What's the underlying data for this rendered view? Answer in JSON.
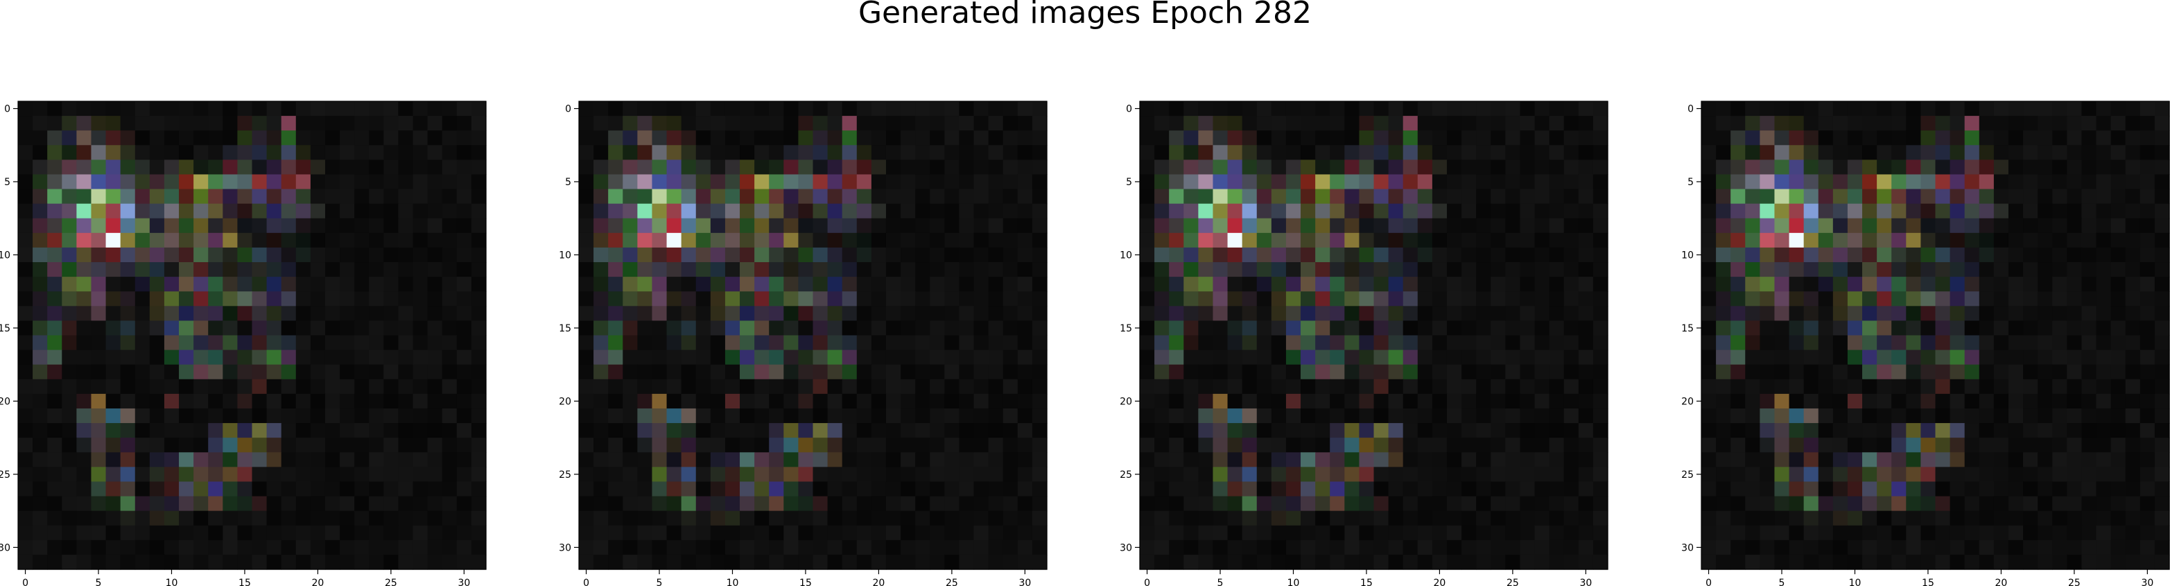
{
  "title": "Generated images Epoch 282",
  "chart_data": [
    {
      "type": "heatmap",
      "x_ticks": [
        "0",
        "5",
        "10",
        "15",
        "20",
        "25",
        "30"
      ],
      "y_ticks": [
        "0",
        "5",
        "10",
        "15",
        "20",
        "25",
        "30"
      ],
      "xlim": [
        -0.5,
        31.5
      ],
      "ylim": [
        31.5,
        -0.5
      ],
      "grid": false,
      "content": "32x32 RGB generated image (pixel values not readable)"
    },
    {
      "type": "heatmap",
      "x_ticks": [
        "0",
        "5",
        "10",
        "15",
        "20",
        "25",
        "30"
      ],
      "y_ticks": [
        "0",
        "5",
        "10",
        "15",
        "20",
        "25",
        "30"
      ],
      "xlim": [
        -0.5,
        31.5
      ],
      "ylim": [
        31.5,
        -0.5
      ],
      "grid": false,
      "content": "32x32 RGB generated image (pixel values not readable)"
    },
    {
      "type": "heatmap",
      "x_ticks": [
        "0",
        "5",
        "10",
        "15",
        "20",
        "25",
        "30"
      ],
      "y_ticks": [
        "0",
        "5",
        "10",
        "15",
        "20",
        "25",
        "30"
      ],
      "xlim": [
        -0.5,
        31.5
      ],
      "ylim": [
        31.5,
        -0.5
      ],
      "grid": false,
      "content": "32x32 RGB generated image (pixel values not readable)"
    },
    {
      "type": "heatmap",
      "x_ticks": [
        "0",
        "5",
        "10",
        "15",
        "20",
        "25",
        "30"
      ],
      "y_ticks": [
        "0",
        "5",
        "10",
        "15",
        "20",
        "25",
        "30"
      ],
      "xlim": [
        -0.5,
        31.5
      ],
      "ylim": [
        31.5,
        -0.5
      ],
      "grid": false,
      "content": "32x32 RGB generated image (pixel values not readable)"
    }
  ]
}
